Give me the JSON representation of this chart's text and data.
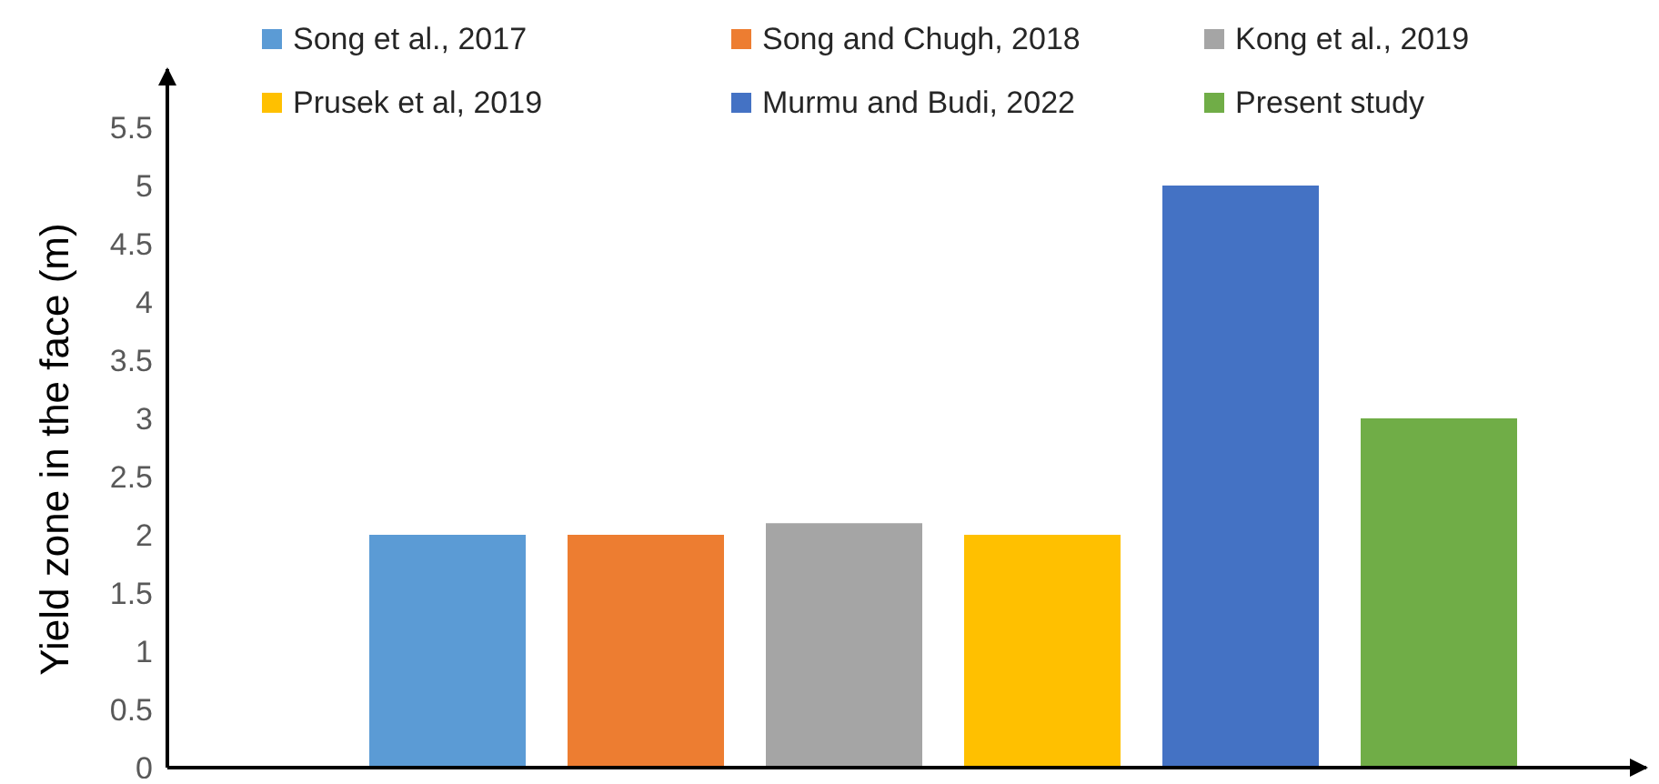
{
  "chart_data": {
    "type": "bar",
    "ylabel": "Yield zone in the face (m)",
    "categories": [
      null
    ],
    "series": [
      {
        "name": "Song et al., 2017",
        "color": "#5b9bd5",
        "values": [
          2
        ]
      },
      {
        "name": "Song and Chugh, 2018",
        "color": "#ed7d31",
        "values": [
          2
        ]
      },
      {
        "name": "Kong et al., 2019",
        "color": "#a5a5a5",
        "values": [
          2.1
        ]
      },
      {
        "name": "Prusek et al, 2019",
        "color": "#ffc000",
        "values": [
          2
        ]
      },
      {
        "name": "Murmu and Budi, 2022",
        "color": "#4472c4",
        "values": [
          5
        ]
      },
      {
        "name": "Present study",
        "color": "#70ad47",
        "values": [
          3
        ]
      }
    ],
    "ylim": [
      0,
      6
    ],
    "yticks": [
      0,
      0.5,
      1,
      1.5,
      2,
      2.5,
      3,
      3.5,
      4,
      4.5,
      5,
      5.5
    ],
    "legend": "top"
  }
}
